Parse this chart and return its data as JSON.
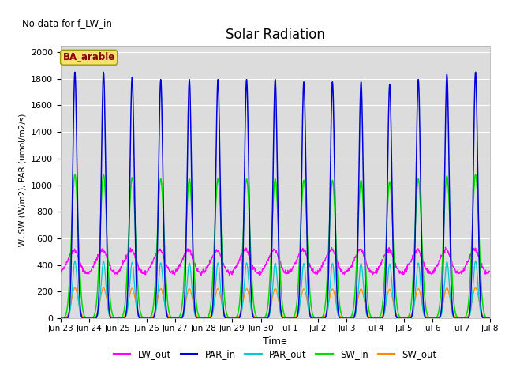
{
  "title": "Solar Radiation",
  "no_data_text": "No data for f_LW_in",
  "ylabel": "LW, SW (W/m2), PAR (umol/m2/s)",
  "xlabel": "Time",
  "box_label": "BA_arable",
  "ylim": [
    0,
    2050
  ],
  "plot_bg": "#dcdcdc",
  "fig_bg": "#ffffff",
  "legend_labels": [
    "LW_out",
    "PAR_in",
    "PAR_out",
    "SW_in",
    "SW_out"
  ],
  "colors": {
    "LW_out": "#ff00ff",
    "PAR_in": "#0000dd",
    "PAR_out": "#00cccc",
    "SW_in": "#00dd00",
    "SW_out": "#ff8800"
  },
  "n_days": 15,
  "dt_hours": 0.25,
  "PAR_in_peak": 1850,
  "SW_in_peak": 1080,
  "PAR_out_peak": 430,
  "SW_out_peak": 230,
  "LW_out_base": 400,
  "LW_out_amplitude": 60,
  "tick_labels": [
    "Jun 23",
    "Jun 24",
    "Jun 25",
    "Jun 26",
    "Jun 27",
    "Jun 28",
    "Jun 29",
    "Jun 30",
    "Jul 1",
    "Jul 2",
    "Jul 3",
    "Jul 4",
    "Jul 5",
    "Jul 6",
    "Jul 7",
    "Jul 8"
  ]
}
